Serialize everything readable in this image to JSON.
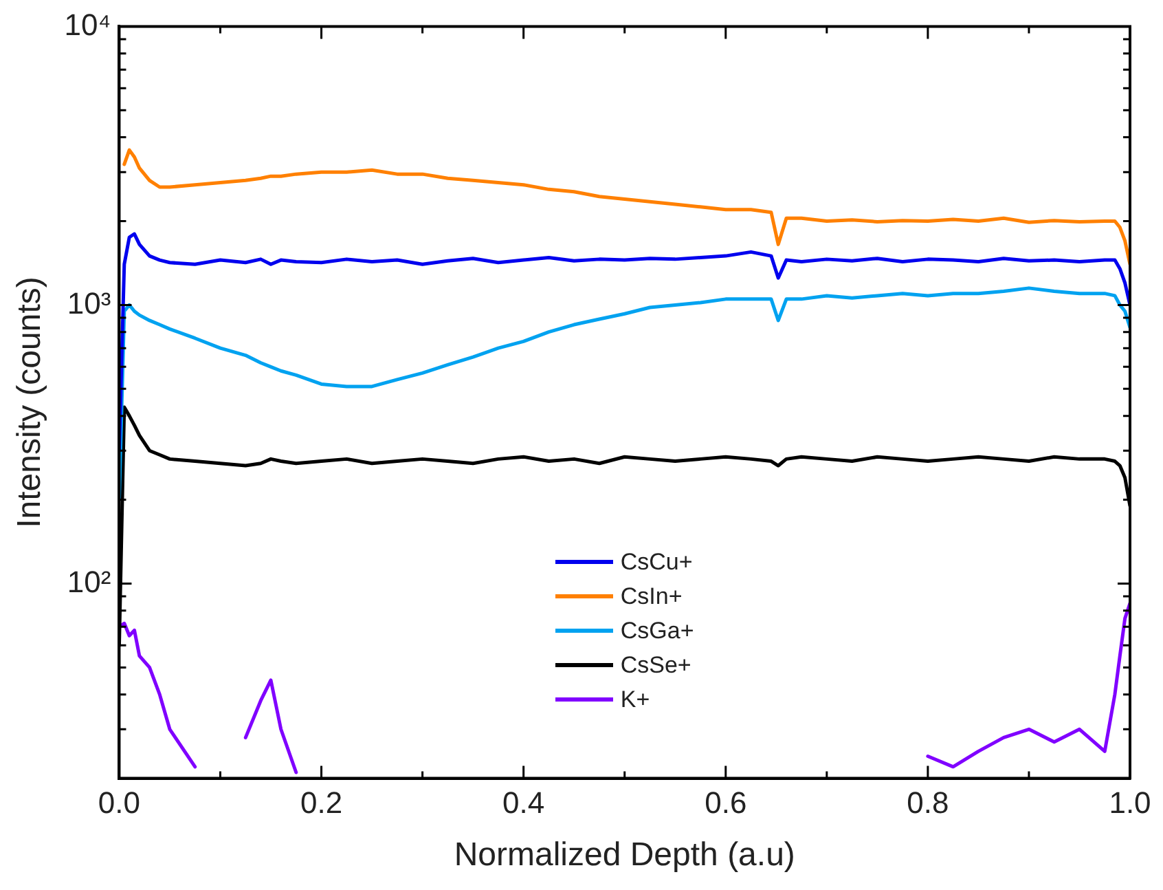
{
  "chart_data": {
    "type": "line",
    "xlabel": "Normalized Depth (a.u)",
    "ylabel": "Intensity (counts)",
    "x": [
      0,
      0.005,
      0.01,
      0.015,
      0.02,
      0.03,
      0.04,
      0.05,
      0.075,
      0.1,
      0.125,
      0.14,
      0.15,
      0.16,
      0.175,
      0.2,
      0.225,
      0.25,
      0.275,
      0.3,
      0.325,
      0.35,
      0.375,
      0.4,
      0.425,
      0.45,
      0.475,
      0.5,
      0.525,
      0.55,
      0.575,
      0.6,
      0.625,
      0.645,
      0.652,
      0.66,
      0.675,
      0.7,
      0.725,
      0.75,
      0.775,
      0.8,
      0.825,
      0.85,
      0.875,
      0.9,
      0.925,
      0.95,
      0.975,
      0.985,
      0.99,
      0.995,
      1.0
    ],
    "series": [
      {
        "name": "CsCu+",
        "color": "#0000ee",
        "values": [
          300,
          1400,
          1750,
          1800,
          1650,
          1500,
          1450,
          1420,
          1400,
          1450,
          1420,
          1460,
          1400,
          1450,
          1430,
          1420,
          1460,
          1430,
          1450,
          1400,
          1440,
          1470,
          1420,
          1450,
          1480,
          1440,
          1460,
          1450,
          1470,
          1460,
          1480,
          1500,
          1550,
          1500,
          1250,
          1450,
          1430,
          1460,
          1440,
          1470,
          1430,
          1460,
          1450,
          1430,
          1470,
          1440,
          1450,
          1430,
          1450,
          1450,
          1350,
          1200,
          1000
        ]
      },
      {
        "name": "CsIn+",
        "color": "#ff8000",
        "values": [
          null,
          3200,
          3600,
          3400,
          3100,
          2800,
          2650,
          2650,
          2700,
          2750,
          2800,
          2850,
          2900,
          2900,
          2950,
          3000,
          3000,
          3050,
          2950,
          2950,
          2850,
          2800,
          2750,
          2700,
          2600,
          2550,
          2450,
          2400,
          2350,
          2300,
          2250,
          2200,
          2200,
          2150,
          1650,
          2050,
          2050,
          2000,
          2020,
          1990,
          2010,
          2000,
          2030,
          2000,
          2050,
          1980,
          2010,
          1990,
          2000,
          2000,
          1900,
          1700,
          1400
        ]
      },
      {
        "name": "CsGa+",
        "color": "#00a2f0",
        "values": [
          200,
          950,
          1000,
          950,
          920,
          880,
          850,
          820,
          760,
          700,
          660,
          620,
          600,
          580,
          560,
          520,
          510,
          510,
          540,
          570,
          610,
          650,
          700,
          740,
          800,
          850,
          890,
          930,
          980,
          1000,
          1020,
          1050,
          1050,
          1050,
          880,
          1050,
          1050,
          1080,
          1060,
          1080,
          1100,
          1080,
          1100,
          1100,
          1120,
          1150,
          1120,
          1100,
          1100,
          1080,
          1000,
          950,
          830
        ]
      },
      {
        "name": "CsSe+",
        "color": "#000000",
        "values": [
          60,
          430,
          400,
          370,
          340,
          300,
          290,
          280,
          275,
          270,
          265,
          270,
          280,
          275,
          270,
          275,
          280,
          270,
          275,
          280,
          275,
          270,
          280,
          285,
          275,
          280,
          270,
          285,
          280,
          275,
          280,
          285,
          280,
          275,
          265,
          280,
          285,
          280,
          275,
          285,
          280,
          275,
          280,
          285,
          280,
          275,
          285,
          280,
          280,
          275,
          265,
          240,
          190
        ]
      },
      {
        "name": "K+",
        "color": "#8000ff",
        "values": [
          70,
          72,
          65,
          68,
          55,
          50,
          40,
          30,
          22,
          null,
          28,
          38,
          45,
          30,
          21,
          null,
          null,
          null,
          null,
          null,
          null,
          null,
          null,
          null,
          null,
          null,
          null,
          null,
          null,
          null,
          null,
          null,
          null,
          null,
          null,
          null,
          null,
          null,
          null,
          null,
          null,
          24,
          22,
          25,
          28,
          30,
          27,
          30,
          25,
          40,
          55,
          75,
          85
        ]
      }
    ],
    "xlim": [
      0,
      1
    ],
    "xticks": [
      {
        "value": 0,
        "label": "0.0"
      },
      {
        "value": 0.1,
        "label": null
      },
      {
        "value": 0.2,
        "label": "0.2"
      },
      {
        "value": 0.3,
        "label": null
      },
      {
        "value": 0.4,
        "label": "0.4"
      },
      {
        "value": 0.5,
        "label": null
      },
      {
        "value": 0.6,
        "label": "0.6"
      },
      {
        "value": 0.7,
        "label": null
      },
      {
        "value": 0.8,
        "label": "0.8"
      },
      {
        "value": 0.9,
        "label": null
      },
      {
        "value": 1,
        "label": "1.0"
      }
    ],
    "log": true,
    "ylim": [
      20,
      10000
    ],
    "yticks": [
      {
        "value": 20,
        "label": null
      },
      {
        "value": 30,
        "label": null
      },
      {
        "value": 40,
        "label": null
      },
      {
        "value": 50,
        "label": null
      },
      {
        "value": 60,
        "label": null
      },
      {
        "value": 70,
        "label": null
      },
      {
        "value": 80,
        "label": null
      },
      {
        "value": 90,
        "label": null
      },
      {
        "value": 100,
        "label": "10²"
      },
      {
        "value": 200,
        "label": null
      },
      {
        "value": 300,
        "label": null
      },
      {
        "value": 400,
        "label": null
      },
      {
        "value": 500,
        "label": null
      },
      {
        "value": 600,
        "label": null
      },
      {
        "value": 700,
        "label": null
      },
      {
        "value": 800,
        "label": null
      },
      {
        "value": 900,
        "label": null
      },
      {
        "value": 1000,
        "label": "10³"
      },
      {
        "value": 2000,
        "label": null
      },
      {
        "value": 3000,
        "label": null
      },
      {
        "value": 4000,
        "label": null
      },
      {
        "value": 5000,
        "label": null
      },
      {
        "value": 6000,
        "label": null
      },
      {
        "value": 7000,
        "label": null
      },
      {
        "value": 8000,
        "label": null
      },
      {
        "value": 9000,
        "label": null
      },
      {
        "value": 10000,
        "label": "10⁴"
      }
    ],
    "grid": false,
    "legend": "bottom",
    "marker": "none",
    "line_style": "solid"
  }
}
